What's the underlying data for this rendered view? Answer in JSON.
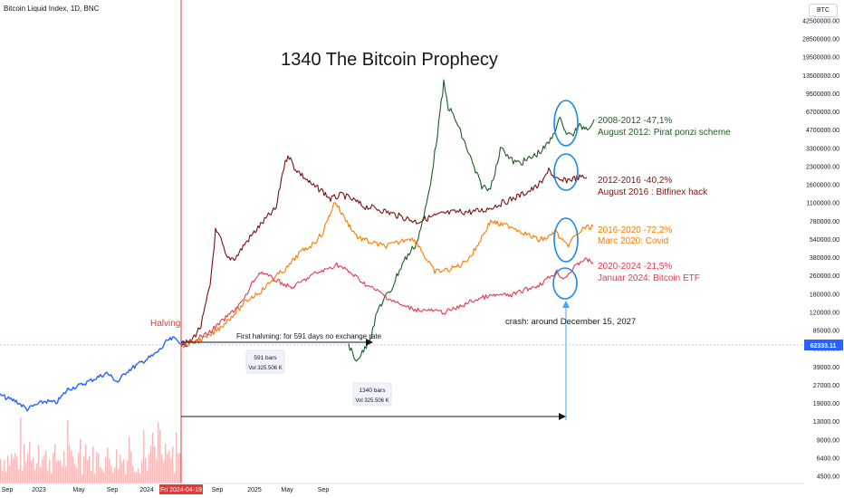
{
  "header": {
    "symbol_info": "Bitcoin Liquid Index, 1D, BNC",
    "currency_button": "BTC"
  },
  "colors": {
    "current_cycle": "#2962ff",
    "cycle_2008": "#1b5e20",
    "cycle_2012": "#7b1111",
    "cycle_2016": "#f57c00",
    "cycle_2020": "#e53950",
    "halving_line": "#e53935",
    "circle": "#1e88e5",
    "volume": "#ef9a9a"
  },
  "chart_data": {
    "type": "line",
    "title": "1340 The Bitcoin Prophecy",
    "scale": "log",
    "ylim": [
      4500,
      42500000
    ],
    "y_ticks": [
      "42500000.00",
      "28500000.00",
      "19500000.00",
      "13500000.00",
      "9500000.00",
      "6700000.00",
      "4700000.00",
      "3300000.00",
      "2300000.00",
      "1600000.00",
      "1100000.00",
      "780000.00",
      "540000.00",
      "380000.00",
      "260000.00",
      "180000.00",
      "120000.00",
      "85000.00",
      "56000.00",
      "39000.00",
      "27000.00",
      "19000.00",
      "13000.00",
      "9000.00",
      "6400.00",
      "4500.00"
    ],
    "x_ticks": [
      "Sep",
      "2023",
      "May",
      "Sep",
      "2024",
      "Fri 2024-04-19",
      "Sep",
      "2025",
      "May",
      "Sep"
    ],
    "last_price_label": "62333.11",
    "series": [
      {
        "name": "2008-2012  -47,1%",
        "description": "August 2012: Pirat ponzi scheme"
      },
      {
        "name": "2012-2016  -40,2%",
        "description": "August 2016 : Bitfinex hack"
      },
      {
        "name": "2016-2020  -72,2%",
        "description": "Marc 2020: Covid"
      },
      {
        "name": "2020-2024  -21,5%",
        "description": "Januar 2024: Bitcoin ETF"
      }
    ],
    "annotations": {
      "halving": "Halving",
      "first_halving_note": "First halvning: for 591 days no exchange rate",
      "crash_note": "crash: around December 15, 2027",
      "box1_bars": "591 bars",
      "box1_vol": "Vol 325.506 K",
      "box2_bars": "1340 bars",
      "box2_vol": "Vol 325.506 K"
    }
  }
}
